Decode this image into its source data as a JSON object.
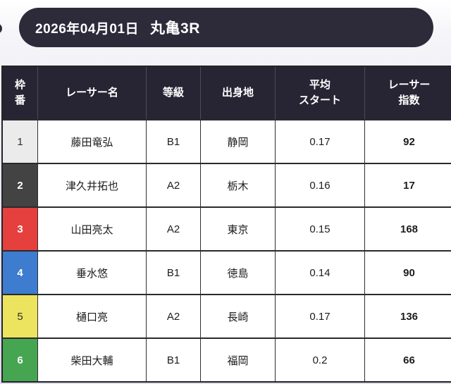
{
  "header": {
    "date": "2026年04月01日",
    "race": "丸亀3R",
    "bg": "#2d2b3a",
    "text_color": "#ffffff"
  },
  "colors": {
    "page_bg_top": "#ffffff",
    "page_bg_bottom": "#dbdbee",
    "table_header_bg": "#272533",
    "table_border": "#2f2f2f"
  },
  "table": {
    "columns": [
      {
        "key": "frame",
        "label": "枠\n番"
      },
      {
        "key": "name",
        "label": "レーサー名"
      },
      {
        "key": "grade",
        "label": "等級"
      },
      {
        "key": "birthplace",
        "label": "出身地"
      },
      {
        "key": "avg_start",
        "label": "平均\nスタート"
      },
      {
        "key": "index",
        "label": "レーサー\n指数"
      }
    ],
    "rows": [
      {
        "frame": "1",
        "frame_bg": "#ebebeb",
        "frame_text": "#2e2e2e",
        "name": "藤田竜弘",
        "grade": "B1",
        "birthplace": "静岡",
        "avg_start": "0.17",
        "index": "92"
      },
      {
        "frame": "2",
        "frame_bg": "#434343",
        "frame_text": "#ffffff",
        "name": "津久井拓也",
        "grade": "A2",
        "birthplace": "栃木",
        "avg_start": "0.16",
        "index": "17"
      },
      {
        "frame": "3",
        "frame_bg": "#e6403e",
        "frame_text": "#ffffff",
        "name": "山田亮太",
        "grade": "A2",
        "birthplace": "東京",
        "avg_start": "0.15",
        "index": "168"
      },
      {
        "frame": "4",
        "frame_bg": "#3d7cce",
        "frame_text": "#ffffff",
        "name": "垂水悠",
        "grade": "B1",
        "birthplace": "徳島",
        "avg_start": "0.14",
        "index": "90"
      },
      {
        "frame": "5",
        "frame_bg": "#ece45f",
        "frame_text": "#2e2e2e",
        "name": "樋口亮",
        "grade": "A2",
        "birthplace": "長崎",
        "avg_start": "0.17",
        "index": "136"
      },
      {
        "frame": "6",
        "frame_bg": "#46a551",
        "frame_text": "#ffffff",
        "name": "柴田大輔",
        "grade": "B1",
        "birthplace": "福岡",
        "avg_start": "0.2",
        "index": "66"
      }
    ]
  },
  "chart_data": {
    "type": "table",
    "title": "2026年04月01日 丸亀3R",
    "columns": [
      "枠番",
      "レーサー名",
      "等級",
      "出身地",
      "平均スタート",
      "レーサー指数"
    ],
    "rows": [
      [
        "1",
        "藤田竜弘",
        "B1",
        "静岡",
        0.17,
        92
      ],
      [
        "2",
        "津久井拓也",
        "A2",
        "栃木",
        0.16,
        17
      ],
      [
        "3",
        "山田亮太",
        "A2",
        "東京",
        0.15,
        168
      ],
      [
        "4",
        "垂水悠",
        "B1",
        "徳島",
        0.14,
        90
      ],
      [
        "5",
        "樋口亮",
        "A2",
        "長崎",
        0.17,
        136
      ],
      [
        "6",
        "柴田大輔",
        "B1",
        "福岡",
        0.2,
        66
      ]
    ]
  }
}
